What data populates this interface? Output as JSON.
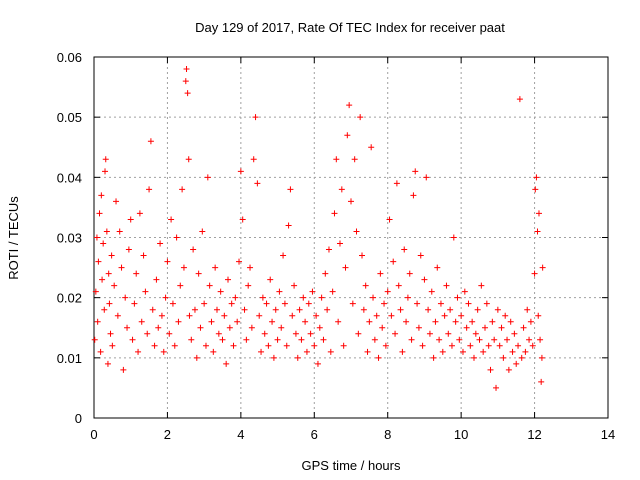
{
  "chart_data": {
    "type": "scatter",
    "title": "Day 129 of 2017, Rate Of TEC Index for receiver paat",
    "xlabel": "GPS time / hours",
    "ylabel": "ROTI / TECUs",
    "xlim": [
      0,
      14
    ],
    "ylim": [
      0,
      0.06
    ],
    "x_ticks": [
      "0",
      "2",
      "4",
      "6",
      "8",
      "10",
      "12",
      "14"
    ],
    "y_ticks": [
      "0",
      "0.01",
      "0.02",
      "0.03",
      "0.04",
      "0.05",
      "0.06"
    ],
    "grid": true,
    "marker": "+",
    "color": "#ff0000",
    "series": [
      {
        "points": [
          [
            0.02,
            0.013
          ],
          [
            0.05,
            0.021
          ],
          [
            0.08,
            0.03
          ],
          [
            0.1,
            0.016
          ],
          [
            0.12,
            0.026
          ],
          [
            0.15,
            0.034
          ],
          [
            0.18,
            0.011
          ],
          [
            0.2,
            0.037
          ],
          [
            0.22,
            0.023
          ],
          [
            0.25,
            0.029
          ],
          [
            0.28,
            0.018
          ],
          [
            0.3,
            0.041
          ],
          [
            0.32,
            0.043
          ],
          [
            0.35,
            0.031
          ],
          [
            0.38,
            0.009
          ],
          [
            0.4,
            0.024
          ],
          [
            0.42,
            0.019
          ],
          [
            0.45,
            0.014
          ],
          [
            0.48,
            0.027
          ],
          [
            0.5,
            0.012
          ],
          [
            0.55,
            0.022
          ],
          [
            0.6,
            0.036
          ],
          [
            0.65,
            0.017
          ],
          [
            0.7,
            0.031
          ],
          [
            0.75,
            0.025
          ],
          [
            0.8,
            0.008
          ],
          [
            0.85,
            0.02
          ],
          [
            0.9,
            0.015
          ],
          [
            0.95,
            0.028
          ],
          [
            1.0,
            0.033
          ],
          [
            1.05,
            0.013
          ],
          [
            1.1,
            0.019
          ],
          [
            1.15,
            0.024
          ],
          [
            1.2,
            0.011
          ],
          [
            1.25,
            0.034
          ],
          [
            1.3,
            0.016
          ],
          [
            1.35,
            0.027
          ],
          [
            1.4,
            0.021
          ],
          [
            1.45,
            0.014
          ],
          [
            1.5,
            0.038
          ],
          [
            1.55,
            0.046
          ],
          [
            1.6,
            0.018
          ],
          [
            1.65,
            0.012
          ],
          [
            1.7,
            0.023
          ],
          [
            1.75,
            0.015
          ],
          [
            1.8,
            0.029
          ],
          [
            1.85,
            0.017
          ],
          [
            1.9,
            0.011
          ],
          [
            1.95,
            0.02
          ],
          [
            2.0,
            0.026
          ],
          [
            2.05,
            0.014
          ],
          [
            2.1,
            0.033
          ],
          [
            2.15,
            0.019
          ],
          [
            2.2,
            0.012
          ],
          [
            2.25,
            0.03
          ],
          [
            2.3,
            0.016
          ],
          [
            2.35,
            0.022
          ],
          [
            2.4,
            0.038
          ],
          [
            2.45,
            0.025
          ],
          [
            2.5,
            0.056
          ],
          [
            2.52,
            0.058
          ],
          [
            2.55,
            0.054
          ],
          [
            2.58,
            0.043
          ],
          [
            2.6,
            0.017
          ],
          [
            2.65,
            0.013
          ],
          [
            2.7,
            0.028
          ],
          [
            2.75,
            0.018
          ],
          [
            2.8,
            0.01
          ],
          [
            2.85,
            0.024
          ],
          [
            2.9,
            0.015
          ],
          [
            2.95,
            0.031
          ],
          [
            3.0,
            0.019
          ],
          [
            3.05,
            0.012
          ],
          [
            3.1,
            0.04
          ],
          [
            3.15,
            0.022
          ],
          [
            3.2,
            0.016
          ],
          [
            3.25,
            0.011
          ],
          [
            3.3,
            0.025
          ],
          [
            3.35,
            0.018
          ],
          [
            3.4,
            0.014
          ],
          [
            3.45,
            0.021
          ],
          [
            3.5,
            0.013
          ],
          [
            3.55,
            0.017
          ],
          [
            3.6,
            0.009
          ],
          [
            3.65,
            0.023
          ],
          [
            3.7,
            0.015
          ],
          [
            3.75,
            0.019
          ],
          [
            3.8,
            0.012
          ],
          [
            3.85,
            0.02
          ],
          [
            3.9,
            0.016
          ],
          [
            3.95,
            0.026
          ],
          [
            4.0,
            0.041
          ],
          [
            4.05,
            0.033
          ],
          [
            4.1,
            0.018
          ],
          [
            4.15,
            0.013
          ],
          [
            4.2,
            0.022
          ],
          [
            4.25,
            0.025
          ],
          [
            4.3,
            0.015
          ],
          [
            4.35,
            0.043
          ],
          [
            4.4,
            0.05
          ],
          [
            4.45,
            0.039
          ],
          [
            4.5,
            0.017
          ],
          [
            4.55,
            0.011
          ],
          [
            4.6,
            0.02
          ],
          [
            4.65,
            0.014
          ],
          [
            4.7,
            0.019
          ],
          [
            4.75,
            0.012
          ],
          [
            4.8,
            0.023
          ],
          [
            4.85,
            0.016
          ],
          [
            4.9,
            0.01
          ],
          [
            4.95,
            0.018
          ],
          [
            5.0,
            0.013
          ],
          [
            5.05,
            0.021
          ],
          [
            5.1,
            0.015
          ],
          [
            5.15,
            0.027
          ],
          [
            5.2,
            0.019
          ],
          [
            5.25,
            0.012
          ],
          [
            5.3,
            0.032
          ],
          [
            5.35,
            0.038
          ],
          [
            5.4,
            0.017
          ],
          [
            5.45,
            0.022
          ],
          [
            5.5,
            0.014
          ],
          [
            5.55,
            0.01
          ],
          [
            5.6,
            0.018
          ],
          [
            5.65,
            0.013
          ],
          [
            5.7,
            0.02
          ],
          [
            5.75,
            0.016
          ],
          [
            5.8,
            0.011
          ],
          [
            5.85,
            0.019
          ],
          [
            5.9,
            0.014
          ],
          [
            5.95,
            0.021
          ],
          [
            6.0,
            0.012
          ],
          [
            6.05,
            0.017
          ],
          [
            6.1,
            0.009
          ],
          [
            6.15,
            0.015
          ],
          [
            6.2,
            0.02
          ],
          [
            6.25,
            0.013
          ],
          [
            6.3,
            0.024
          ],
          [
            6.35,
            0.018
          ],
          [
            6.4,
            0.028
          ],
          [
            6.45,
            0.011
          ],
          [
            6.5,
            0.021
          ],
          [
            6.55,
            0.034
          ],
          [
            6.6,
            0.043
          ],
          [
            6.65,
            0.016
          ],
          [
            6.7,
            0.029
          ],
          [
            6.75,
            0.038
          ],
          [
            6.8,
            0.012
          ],
          [
            6.85,
            0.025
          ],
          [
            6.9,
            0.047
          ],
          [
            6.95,
            0.052
          ],
          [
            7.0,
            0.036
          ],
          [
            7.05,
            0.019
          ],
          [
            7.1,
            0.043
          ],
          [
            7.15,
            0.031
          ],
          [
            7.2,
            0.014
          ],
          [
            7.25,
            0.05
          ],
          [
            7.3,
            0.027
          ],
          [
            7.35,
            0.018
          ],
          [
            7.4,
            0.022
          ],
          [
            7.45,
            0.011
          ],
          [
            7.5,
            0.016
          ],
          [
            7.55,
            0.045
          ],
          [
            7.6,
            0.02
          ],
          [
            7.65,
            0.013
          ],
          [
            7.7,
            0.017
          ],
          [
            7.75,
            0.01
          ],
          [
            7.8,
            0.024
          ],
          [
            7.85,
            0.015
          ],
          [
            7.9,
            0.019
          ],
          [
            7.95,
            0.012
          ],
          [
            8.0,
            0.021
          ],
          [
            8.05,
            0.033
          ],
          [
            8.1,
            0.017
          ],
          [
            8.15,
            0.026
          ],
          [
            8.2,
            0.014
          ],
          [
            8.25,
            0.039
          ],
          [
            8.3,
            0.022
          ],
          [
            8.35,
            0.018
          ],
          [
            8.4,
            0.011
          ],
          [
            8.45,
            0.028
          ],
          [
            8.5,
            0.016
          ],
          [
            8.55,
            0.02
          ],
          [
            8.6,
            0.024
          ],
          [
            8.65,
            0.013
          ],
          [
            8.7,
            0.037
          ],
          [
            8.75,
            0.041
          ],
          [
            8.8,
            0.019
          ],
          [
            8.85,
            0.015
          ],
          [
            8.9,
            0.027
          ],
          [
            8.95,
            0.012
          ],
          [
            9.0,
            0.023
          ],
          [
            9.05,
            0.04
          ],
          [
            9.1,
            0.018
          ],
          [
            9.15,
            0.014
          ],
          [
            9.2,
            0.021
          ],
          [
            9.25,
            0.01
          ],
          [
            9.3,
            0.016
          ],
          [
            9.35,
            0.025
          ],
          [
            9.4,
            0.013
          ],
          [
            9.45,
            0.019
          ],
          [
            9.5,
            0.011
          ],
          [
            9.55,
            0.017
          ],
          [
            9.6,
            0.022
          ],
          [
            9.65,
            0.014
          ],
          [
            9.7,
            0.018
          ],
          [
            9.75,
            0.012
          ],
          [
            9.8,
            0.03
          ],
          [
            9.85,
            0.016
          ],
          [
            9.9,
            0.02
          ],
          [
            9.95,
            0.013
          ],
          [
            10.0,
            0.017
          ],
          [
            10.05,
            0.011
          ],
          [
            10.1,
            0.021
          ],
          [
            10.15,
            0.015
          ],
          [
            10.2,
            0.019
          ],
          [
            10.25,
            0.012
          ],
          [
            10.3,
            0.016
          ],
          [
            10.35,
            0.01
          ],
          [
            10.4,
            0.014
          ],
          [
            10.45,
            0.018
          ],
          [
            10.5,
            0.013
          ],
          [
            10.55,
            0.022
          ],
          [
            10.6,
            0.011
          ],
          [
            10.65,
            0.015
          ],
          [
            10.7,
            0.019
          ],
          [
            10.75,
            0.012
          ],
          [
            10.8,
            0.008
          ],
          [
            10.85,
            0.016
          ],
          [
            10.9,
            0.013
          ],
          [
            10.95,
            0.005
          ],
          [
            11.0,
            0.018
          ],
          [
            11.05,
            0.012
          ],
          [
            11.1,
            0.015
          ],
          [
            11.15,
            0.01
          ],
          [
            11.2,
            0.017
          ],
          [
            11.25,
            0.013
          ],
          [
            11.3,
            0.008
          ],
          [
            11.35,
            0.016
          ],
          [
            11.4,
            0.011
          ],
          [
            11.45,
            0.014
          ],
          [
            11.5,
            0.009
          ],
          [
            11.55,
            0.012
          ],
          [
            11.6,
            0.053
          ],
          [
            11.65,
            0.01
          ],
          [
            11.7,
            0.015
          ],
          [
            11.75,
            0.011
          ],
          [
            11.8,
            0.018
          ],
          [
            11.85,
            0.013
          ],
          [
            11.9,
            0.016
          ],
          [
            11.95,
            0.012
          ],
          [
            12.0,
            0.024
          ],
          [
            12.02,
            0.038
          ],
          [
            12.05,
            0.04
          ],
          [
            12.08,
            0.031
          ],
          [
            12.1,
            0.017
          ],
          [
            12.12,
            0.034
          ],
          [
            12.15,
            0.013
          ],
          [
            12.18,
            0.006
          ],
          [
            12.2,
            0.01
          ],
          [
            12.22,
            0.025
          ]
        ]
      }
    ]
  }
}
